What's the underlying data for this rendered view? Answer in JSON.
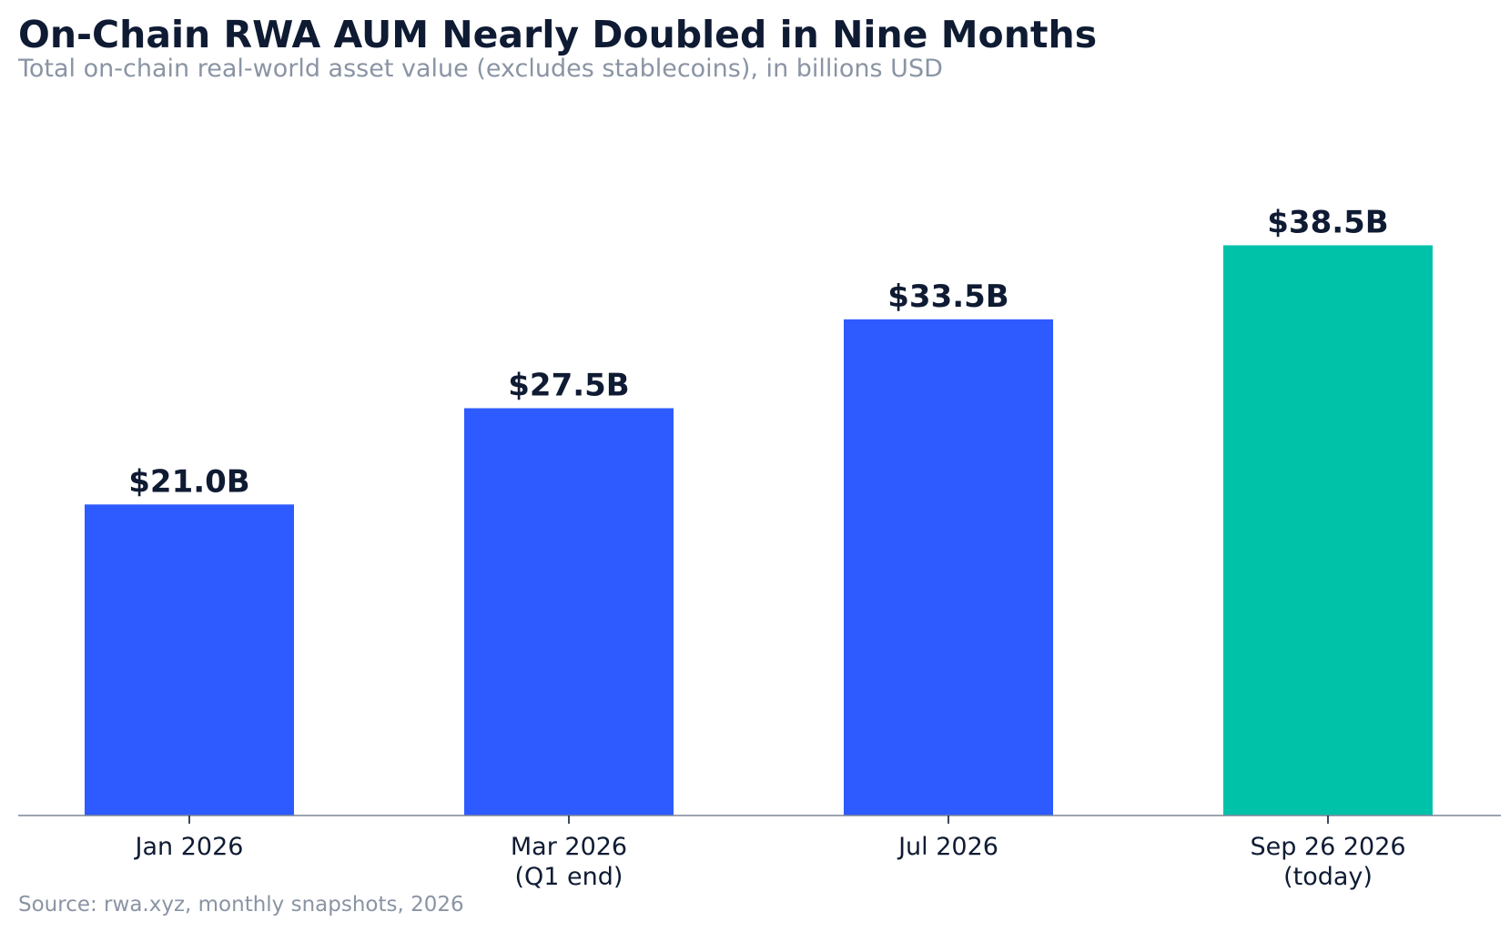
{
  "chart_data": {
    "type": "bar",
    "title": "On-Chain RWA AUM Nearly Doubled in Nine Months",
    "subtitle": "Total on-chain real-world asset value (excludes stablecoins), in billions USD",
    "source": "Source: rwa.xyz, monthly snapshots, 2026",
    "categories": [
      [
        "Jan 2026"
      ],
      [
        "Mar 2026",
        "(Q1 end)"
      ],
      [
        "Jul 2026"
      ],
      [
        "Sep 26 2026",
        "(today)"
      ]
    ],
    "values": [
      21.0,
      27.5,
      33.5,
      38.5
    ],
    "data_labels": [
      "$21.0B",
      "$27.5B",
      "$33.5B",
      "$38.5B"
    ],
    "colors": [
      "#2e5bff",
      "#2e5bff",
      "#2e5bff",
      "#00c2a8"
    ],
    "xlabel": "",
    "ylabel": "",
    "ylim": [
      0,
      44
    ],
    "grid": false,
    "legend": "none"
  }
}
